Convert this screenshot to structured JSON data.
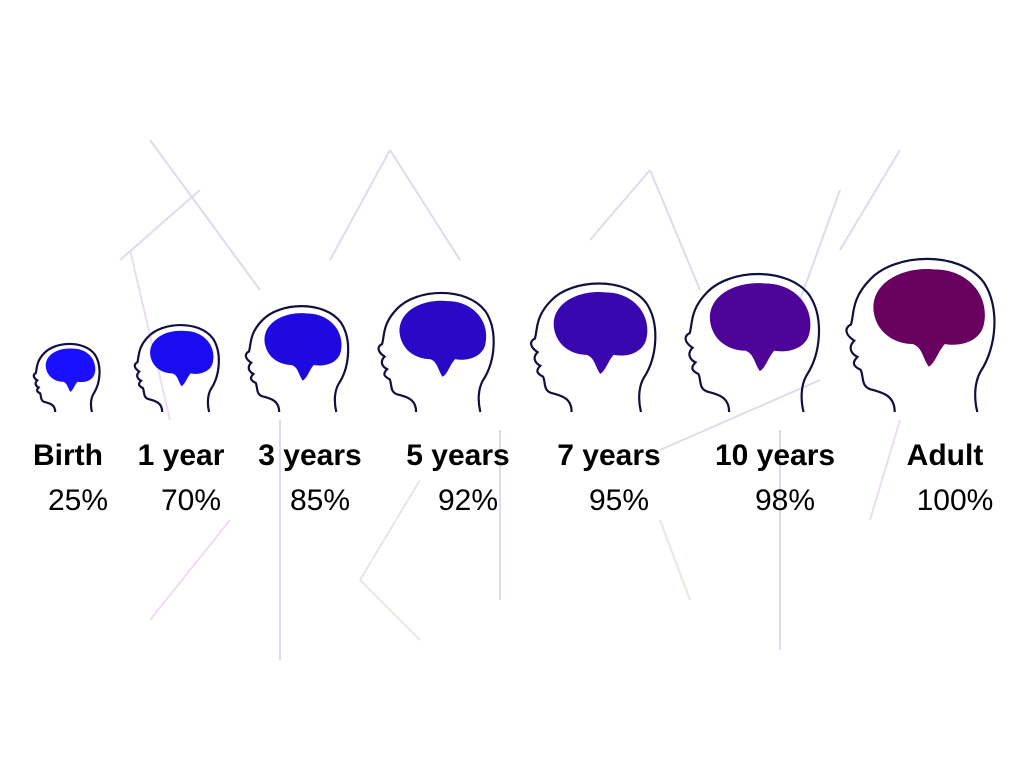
{
  "stages": [
    {
      "label": "Birth",
      "percent": "25%"
    },
    {
      "label": "1 year",
      "percent": "70%"
    },
    {
      "label": "3 years",
      "percent": "85%"
    },
    {
      "label": "5 years",
      "percent": "92%"
    },
    {
      "label": "7 years",
      "percent": "95%"
    },
    {
      "label": "10 years",
      "percent": "98%"
    },
    {
      "label": "Adult",
      "percent": "100%"
    }
  ]
}
